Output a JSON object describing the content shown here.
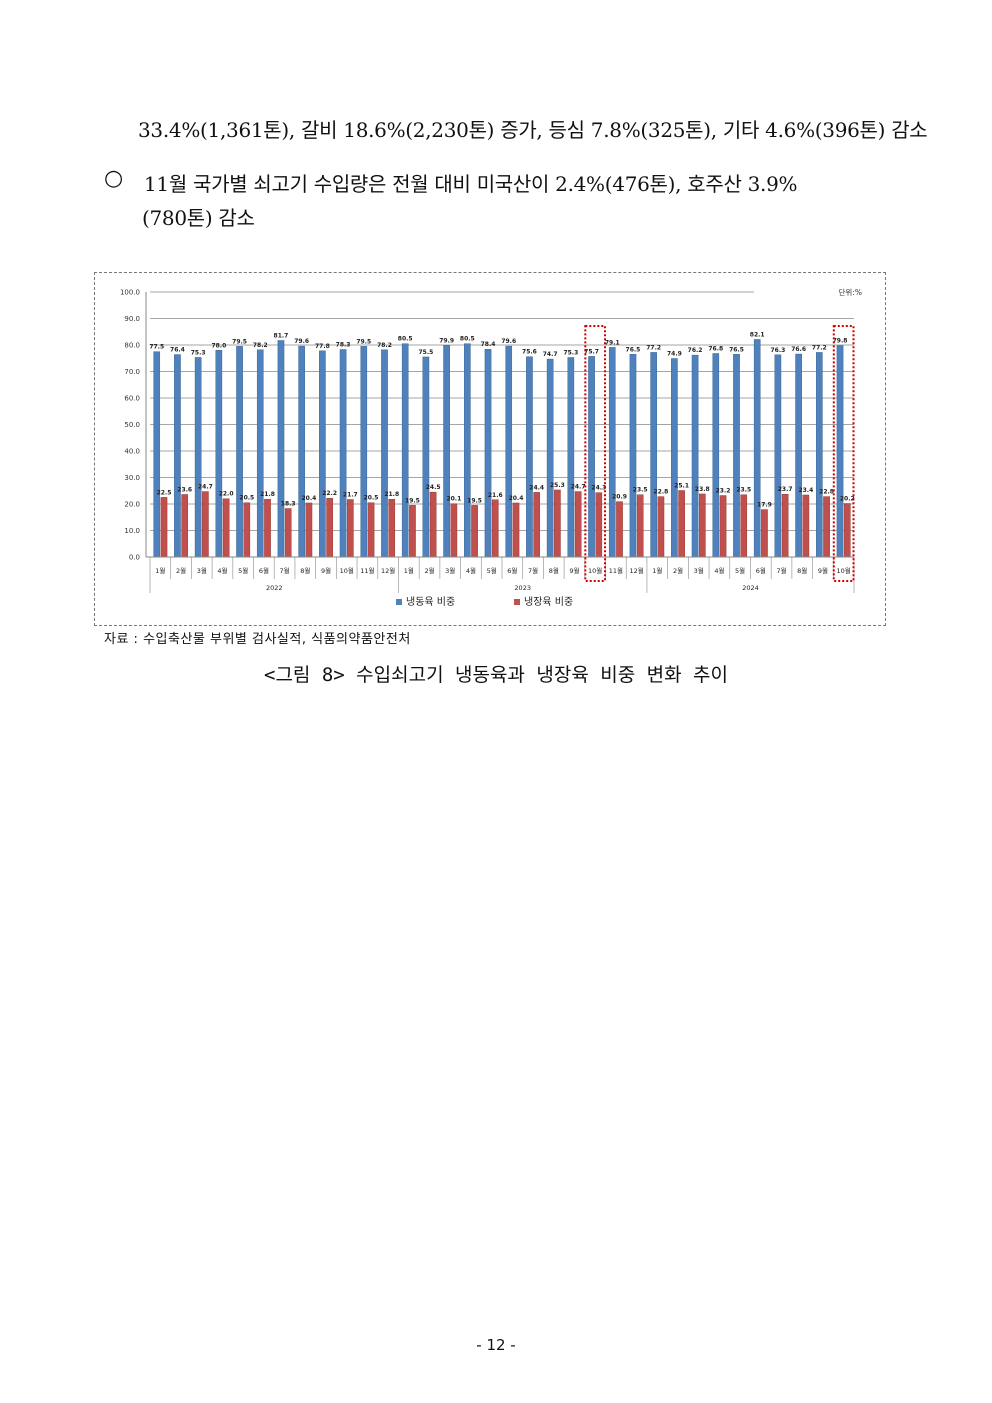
{
  "document": {
    "line1": "33.4%(1,361톤), 갈비 18.6%(2,230톤) 증가, 등심 7.8%(325톤), 기타 4.6%(396톤) 감소",
    "bullet_symbol": "○",
    "bullet_line1": "11월 국가별 쇠고기 수입량은 전월 대비 미국산이 2.4%(476톤), 호주산 3.9%",
    "bullet_line2": "(780톤) 감소",
    "source": "자료 : 수입축산물 부위별 검사실적, 식품의약품안전처",
    "caption": "<그림 8> 수입쇠고기 냉동육과 냉장육 비중 변화 추이",
    "page_number": "- 12 -"
  },
  "chart_data": {
    "type": "bar",
    "unit_label": "단위:%",
    "categories": [
      "1월",
      "2월",
      "3월",
      "4월",
      "5월",
      "6월",
      "7월",
      "8월",
      "9월",
      "10월",
      "11월",
      "12월",
      "1월",
      "2월",
      "3월",
      "4월",
      "5월",
      "6월",
      "7월",
      "8월",
      "9월",
      "10월",
      "11월",
      "12월",
      "1월",
      "2월",
      "3월",
      "4월",
      "5월",
      "6월",
      "7월",
      "8월",
      "9월",
      "10월"
    ],
    "years": [
      {
        "label": "2022",
        "start": 0,
        "end": 11
      },
      {
        "label": "2023",
        "start": 12,
        "end": 23
      },
      {
        "label": "2024",
        "start": 24,
        "end": 33
      }
    ],
    "series": [
      {
        "name": "냉동육 비중",
        "color": "#4F81BD",
        "values": [
          77.5,
          76.4,
          75.3,
          78.0,
          79.5,
          78.2,
          81.7,
          79.6,
          77.8,
          78.3,
          79.5,
          78.2,
          80.5,
          75.5,
          79.9,
          80.5,
          78.4,
          79.6,
          75.6,
          74.7,
          75.3,
          75.7,
          79.1,
          76.5,
          77.2,
          74.9,
          76.2,
          76.8,
          76.5,
          82.1,
          76.3,
          76.6,
          77.2,
          79.8
        ]
      },
      {
        "name": "냉장육 비중",
        "color": "#C0504D",
        "values": [
          22.5,
          23.6,
          24.7,
          22.0,
          20.5,
          21.8,
          18.3,
          20.4,
          22.2,
          21.7,
          20.5,
          21.8,
          19.5,
          24.5,
          20.1,
          19.5,
          21.6,
          20.4,
          24.4,
          25.3,
          24.7,
          24.3,
          20.9,
          23.5,
          22.8,
          25.1,
          23.8,
          23.2,
          23.5,
          17.9,
          23.7,
          23.4,
          22.8,
          20.2
        ]
      }
    ],
    "value_labels": {
      "frozen": [
        "77.5",
        "76.4",
        "75.3",
        "78.0",
        "79.5",
        "78.2",
        "81.7",
        "79.6",
        "77.8",
        "78.3",
        "79.5",
        "78.2",
        "80.5",
        "75.5",
        "79.9",
        "80.5",
        "78.4",
        "79.6",
        "75.6",
        "74.7",
        "75.3",
        "75.7",
        "79.1",
        "76.5",
        "77.2",
        "74.9",
        "76.2",
        "76.8",
        "76.5",
        "82.1",
        "76.3",
        "76.6",
        "77.2",
        "79.8"
      ],
      "chilled": [
        "22.5",
        "23.6",
        "24.7",
        "22.0",
        "20.5",
        "21.8",
        "18.3",
        "20.4",
        "22.2",
        "21.7",
        "20.5",
        "21.8",
        "19.5",
        "24.5",
        "20.1",
        "19.5",
        "21.6",
        "20.4",
        "24.4",
        "25.3",
        "24.7",
        "24.3",
        "20.9",
        "23.5",
        "22.8",
        "25.1",
        "23.8",
        "23.2",
        "23.5",
        "17.9",
        "23.7",
        "23.4",
        "22.8",
        "20.2"
      ]
    },
    "ylim": [
      0,
      100
    ],
    "yticks": [
      "0.0",
      "10.0",
      "20.0",
      "30.0",
      "40.0",
      "50.0",
      "60.0",
      "70.0",
      "80.0",
      "90.0",
      "100.0"
    ],
    "highlighted_categories": [
      21,
      33
    ],
    "highlight_color": "#D00000",
    "grid": true,
    "legend_position": "bottom"
  }
}
